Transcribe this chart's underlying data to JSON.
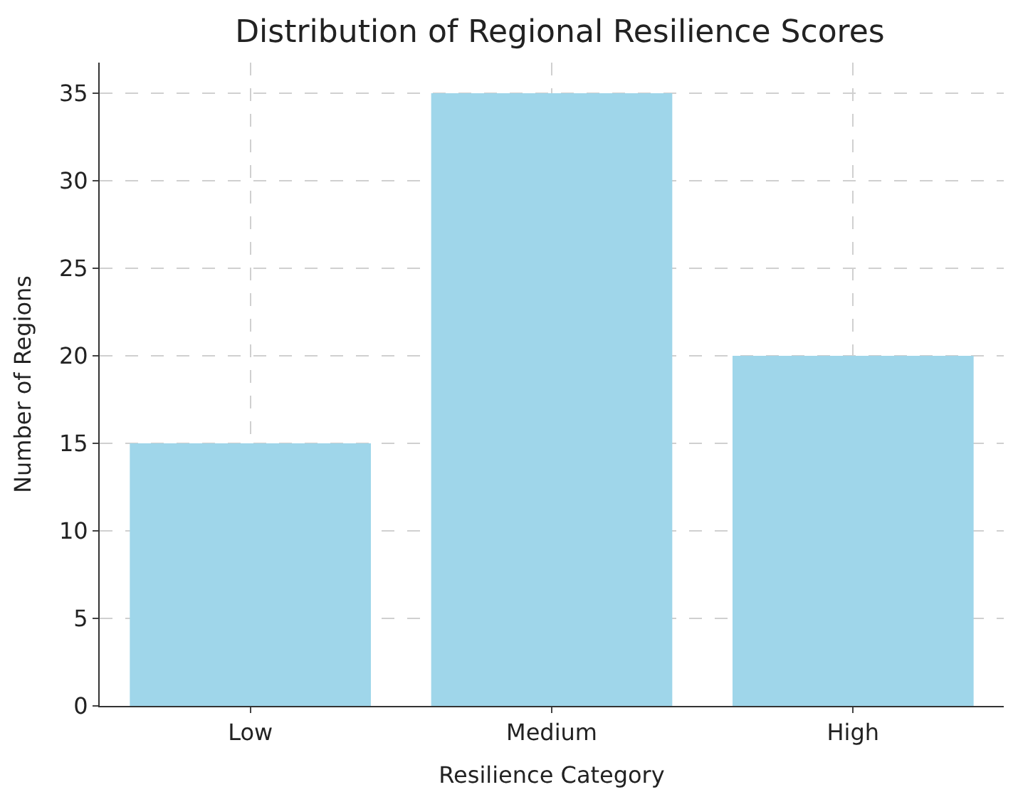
{
  "chart_data": {
    "type": "bar",
    "title": "Distribution of Regional Resilience Scores",
    "xlabel": "Resilience Category",
    "ylabel": "Number of Regions",
    "categories": [
      "Low",
      "Medium",
      "High"
    ],
    "values": [
      15,
      35,
      20
    ],
    "color": "#9fd6ea",
    "ylim": [
      0,
      36.75
    ],
    "yticks": [
      0,
      5,
      10,
      15,
      20,
      25,
      30,
      35
    ],
    "grid": true
  }
}
